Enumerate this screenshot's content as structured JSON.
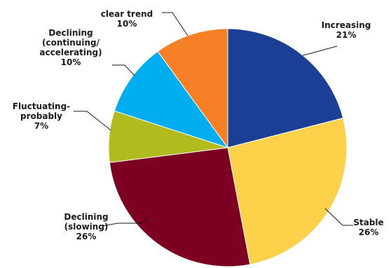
{
  "chart_data": {
    "type": "pie",
    "title": "",
    "legend": "none",
    "slices": [
      {
        "label_lines": [
          "Increasing"
        ],
        "value_label": "21%",
        "value": 21,
        "color": "#1a3f95"
      },
      {
        "label_lines": [
          "Stable"
        ],
        "value_label": "26%",
        "value": 26,
        "color": "#fdd14a"
      },
      {
        "label_lines": [
          "Declining",
          "(slowing)"
        ],
        "value_label": "26%",
        "value": 26,
        "color": "#7d0022"
      },
      {
        "label_lines": [
          "Fluctuating-",
          "probably"
        ],
        "value_label": "7%",
        "value": 7,
        "color": "#b1bb1e"
      },
      {
        "label_lines": [
          "Declining",
          "(continuing/",
          "accelerating)"
        ],
        "value_label": "10%",
        "value": 10,
        "color": "#00adef"
      },
      {
        "label_lines": [
          "clear trend"
        ],
        "value_label": "10%",
        "value": 10,
        "color": "#f58025"
      }
    ]
  }
}
